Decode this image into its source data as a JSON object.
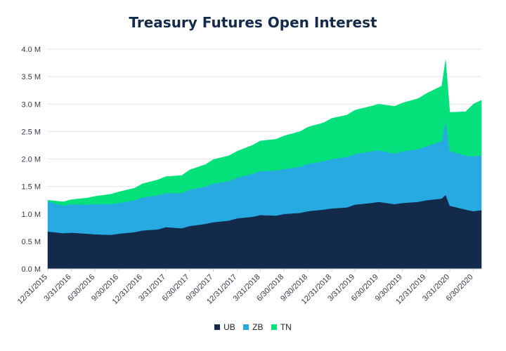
{
  "chart_data": {
    "type": "area",
    "stacked": true,
    "title": "Treasury Futures Open Interest",
    "xlabel": "",
    "ylabel": "",
    "ylim": [
      0,
      4.0
    ],
    "y_ticks": [
      "0.0 M",
      "0.5 M",
      "1.0 M",
      "1.5 M",
      "2.0 M",
      "2.5 M",
      "3.0 M",
      "3.5 M",
      "4.0 M"
    ],
    "x_ticks": [
      "12/31/2015",
      "3/31/2016",
      "6/30/2016",
      "9/30/2016",
      "12/31/2016",
      "3/31/2017",
      "6/30/2017",
      "9/30/2017",
      "12/31/2017",
      "3/31/2018",
      "6/30/2018",
      "9/30/2018",
      "12/31/2018",
      "3/31/2019",
      "6/30/2019",
      "9/30/2019",
      "12/31/2019",
      "3/31/2020",
      "6/30/2020"
    ],
    "grid": "horizontal",
    "legend_position": "bottom",
    "x": [
      "12/31/2015",
      "2/29/2016",
      "3/31/2016",
      "5/31/2016",
      "6/30/2016",
      "8/31/2016",
      "9/30/2016",
      "11/30/2016",
      "12/31/2016",
      "2/28/2017",
      "3/31/2017",
      "5/31/2017",
      "6/30/2017",
      "8/31/2017",
      "9/30/2017",
      "11/30/2017",
      "12/31/2017",
      "2/28/2018",
      "3/31/2018",
      "5/31/2018",
      "6/30/2018",
      "8/31/2018",
      "9/30/2018",
      "11/30/2018",
      "12/31/2018",
      "2/28/2019",
      "3/31/2019",
      "5/31/2019",
      "6/30/2019",
      "8/31/2019",
      "9/30/2019",
      "11/30/2019",
      "12/31/2019",
      "2/29/2020",
      "3/15/2020",
      "3/31/2020",
      "5/31/2020",
      "6/30/2020",
      "7/31/2020"
    ],
    "series": [
      {
        "name": "UB",
        "color": "#132a4b",
        "values": [
          0.68,
          0.65,
          0.66,
          0.64,
          0.63,
          0.62,
          0.64,
          0.67,
          0.7,
          0.72,
          0.76,
          0.74,
          0.78,
          0.82,
          0.85,
          0.88,
          0.92,
          0.95,
          0.98,
          0.97,
          1.0,
          1.02,
          1.05,
          1.08,
          1.1,
          1.12,
          1.17,
          1.2,
          1.22,
          1.18,
          1.2,
          1.22,
          1.25,
          1.28,
          1.35,
          1.15,
          1.08,
          1.05,
          1.07
        ]
      },
      {
        "name": "ZB",
        "color": "#27a9e1",
        "values": [
          0.55,
          0.5,
          0.52,
          0.53,
          0.55,
          0.56,
          0.56,
          0.58,
          0.6,
          0.62,
          0.62,
          0.64,
          0.66,
          0.68,
          0.7,
          0.72,
          0.74,
          0.78,
          0.8,
          0.82,
          0.82,
          0.84,
          0.86,
          0.88,
          0.9,
          0.92,
          0.92,
          0.94,
          0.94,
          0.92,
          0.94,
          0.96,
          0.98,
          1.05,
          1.35,
          1.0,
          0.98,
          1.0,
          1.0
        ]
      },
      {
        "name": "TN",
        "color": "#04e17b",
        "values": [
          0.02,
          0.07,
          0.08,
          0.12,
          0.14,
          0.18,
          0.2,
          0.22,
          0.25,
          0.28,
          0.3,
          0.32,
          0.36,
          0.4,
          0.44,
          0.46,
          0.48,
          0.52,
          0.55,
          0.57,
          0.6,
          0.64,
          0.67,
          0.7,
          0.74,
          0.76,
          0.8,
          0.82,
          0.84,
          0.86,
          0.88,
          0.92,
          0.96,
          1.0,
          1.1,
          0.7,
          0.8,
          0.95,
          1.0
        ]
      }
    ]
  }
}
